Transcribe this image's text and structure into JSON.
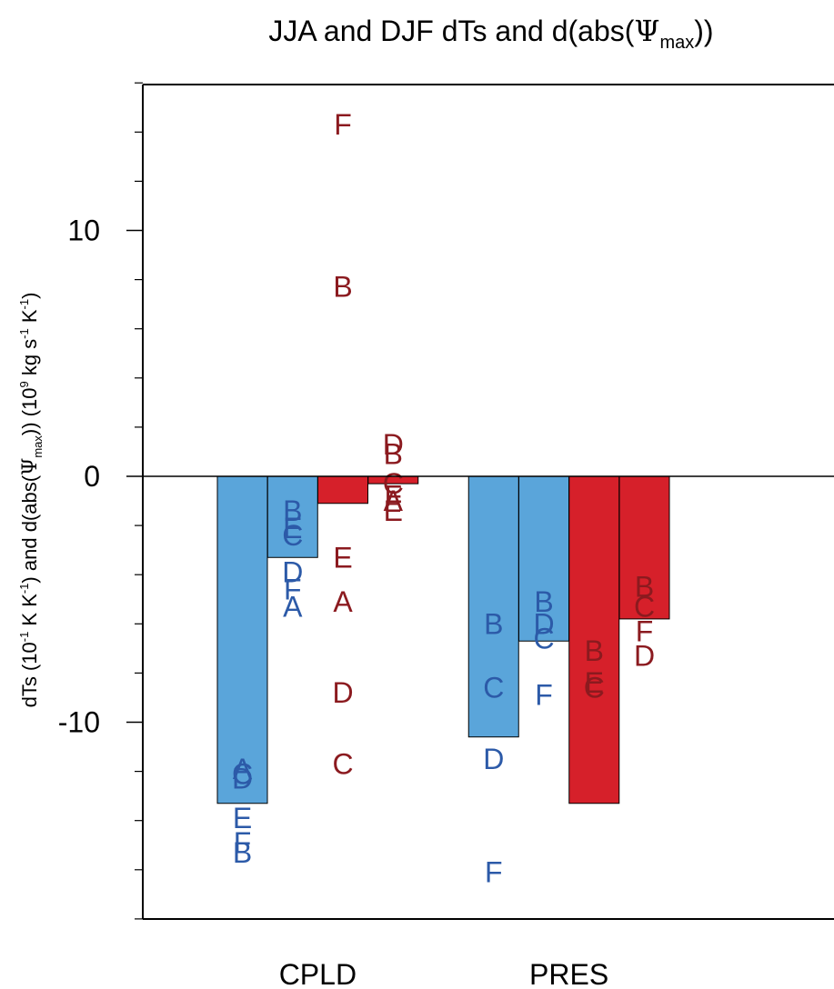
{
  "chart_data": {
    "type": "bar",
    "title": {
      "pre": "JJA and DJF dTs and d(abs(",
      "psi": "Ψ",
      "sub": "max",
      "post": "))"
    },
    "ylabel": {
      "p1": "dTs (10",
      "p1_sup": "-1",
      "p2": " K K",
      "p2_sup": "-1",
      "p3": ") and d(abs(",
      "psi": "Ψ",
      "psi_sub": "max",
      "p4": ")) (10",
      "p4_sup": "9",
      "p5": " kg s",
      "p5_sup": "-1",
      "p6": " K",
      "p6_sup": "-1",
      "p7": ")"
    },
    "ylim": [
      -18,
      16
    ],
    "yticks_major": [
      -10,
      0,
      10
    ],
    "yticks_major_labels": [
      "-10",
      "0",
      "10"
    ],
    "yticks_minor": [
      -18,
      -16,
      -14,
      -12,
      -8,
      -6,
      -4,
      -2,
      2,
      4,
      6,
      8,
      12,
      14,
      16
    ],
    "categories": [
      "CPLD",
      "PRES"
    ],
    "colors": {
      "blue": "#5aa5da",
      "red": "#d6202a",
      "blue_text": "#2c5aa8",
      "red_text": "#8b1a1f"
    },
    "bars": [
      {
        "slot": 1,
        "value": -13.3,
        "color": "blue",
        "points": [
          {
            "label": "A",
            "y": -11.9
          },
          {
            "label": "C",
            "y": -12.1
          },
          {
            "label": "D",
            "y": -12.3
          },
          {
            "label": "E",
            "y": -13.9
          },
          {
            "label": "F",
            "y": -14.9
          },
          {
            "label": "B",
            "y": -15.3
          }
        ]
      },
      {
        "slot": 2,
        "value": -3.3,
        "color": "blue",
        "points": [
          {
            "label": "B",
            "y": -1.4
          },
          {
            "label": "E",
            "y": -2.1
          },
          {
            "label": "C",
            "y": -2.4
          },
          {
            "label": "D",
            "y": -3.9
          },
          {
            "label": "F",
            "y": -4.6
          },
          {
            "label": "A",
            "y": -5.3
          }
        ]
      },
      {
        "slot": 3,
        "value": -1.1,
        "color": "red",
        "points": [
          {
            "label": "F",
            "y": 14.3
          },
          {
            "label": "B",
            "y": 7.7
          },
          {
            "label": "E",
            "y": -3.3
          },
          {
            "label": "A",
            "y": -5.1
          },
          {
            "label": "D",
            "y": -8.8
          },
          {
            "label": "C",
            "y": -11.7
          }
        ]
      },
      {
        "slot": 4,
        "value": -0.3,
        "color": "red",
        "points": [
          {
            "label": "D",
            "y": 1.3
          },
          {
            "label": "B",
            "y": 0.9
          },
          {
            "label": "C",
            "y": -0.3
          },
          {
            "label": "F",
            "y": -0.8
          },
          {
            "label": "A",
            "y": -1.0
          },
          {
            "label": "E",
            "y": -1.4
          }
        ]
      },
      {
        "slot": 6,
        "value": -10.6,
        "color": "blue",
        "points": [
          {
            "label": "B",
            "y": -6.0
          },
          {
            "label": "C",
            "y": -8.6
          },
          {
            "label": "D",
            "y": -11.5
          },
          {
            "label": "F",
            "y": -16.1
          }
        ]
      },
      {
        "slot": 7,
        "value": -6.7,
        "color": "blue",
        "points": [
          {
            "label": "B",
            "y": -5.1
          },
          {
            "label": "D",
            "y": -6.0
          },
          {
            "label": "C",
            "y": -6.6
          },
          {
            "label": "F",
            "y": -8.9
          }
        ]
      },
      {
        "slot": 8,
        "value": -13.3,
        "color": "red",
        "points": [
          {
            "label": "B",
            "y": -7.1
          },
          {
            "label": "E",
            "y": -8.4
          },
          {
            "label": "C",
            "y": -8.6
          }
        ]
      },
      {
        "slot": 9,
        "value": -5.8,
        "color": "red",
        "points": [
          {
            "label": "B",
            "y": -4.5
          },
          {
            "label": "C",
            "y": -5.3
          },
          {
            "label": "F",
            "y": -6.3
          },
          {
            "label": "D",
            "y": -7.3
          }
        ]
      }
    ]
  }
}
